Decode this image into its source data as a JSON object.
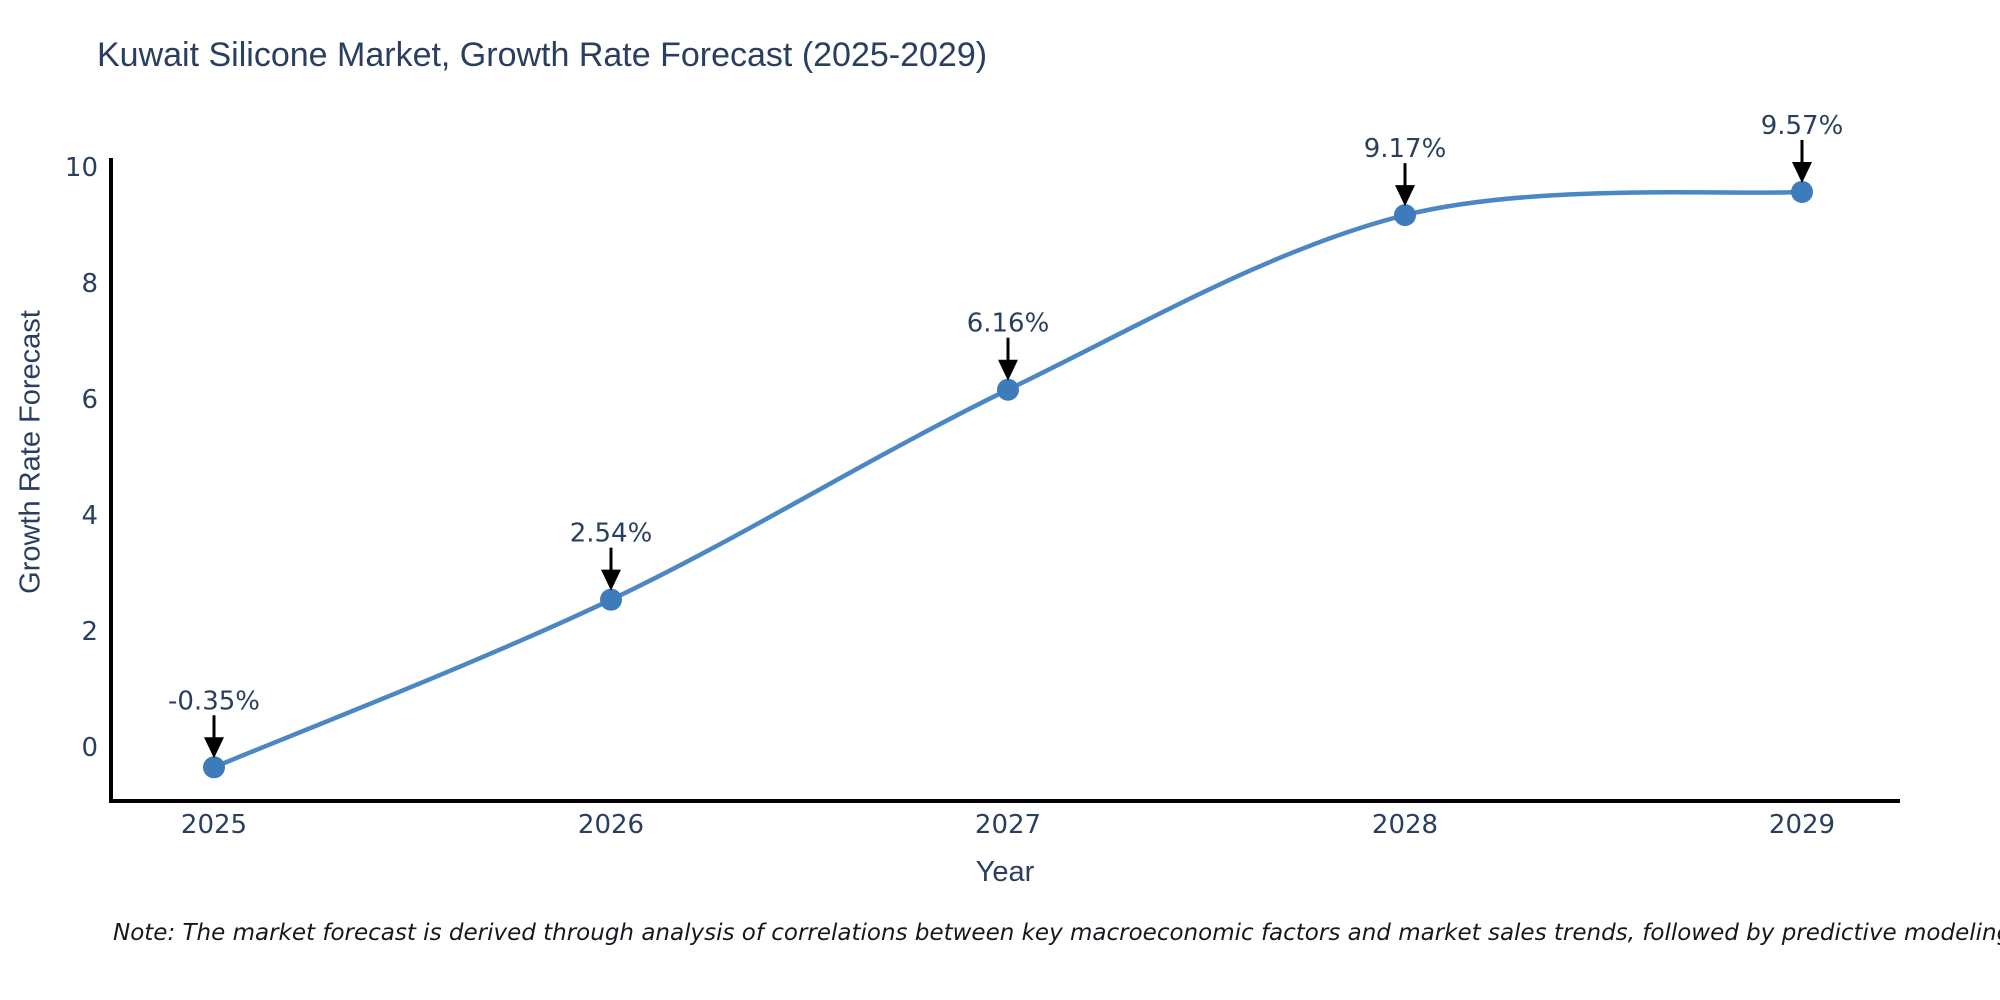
{
  "chart_data": {
    "type": "line",
    "title": "Kuwait Silicone Market, Growth Rate Forecast (2025-2029)",
    "xlabel": "Year",
    "ylabel": "Growth Rate Forecast",
    "x": [
      2025,
      2026,
      2027,
      2028,
      2029
    ],
    "series": [
      {
        "name": "Growth Rate Forecast",
        "values": [
          -0.35,
          2.54,
          6.16,
          9.17,
          9.57
        ],
        "point_labels": [
          "-0.35%",
          "2.54%",
          "6.16%",
          "9.17%",
          "9.57%"
        ]
      }
    ],
    "line_shape": "spline",
    "markers": true,
    "annotations_have_arrows": true,
    "yticks": [
      0,
      2,
      4,
      6,
      8,
      10
    ],
    "xticks": [
      "2025",
      "2026",
      "2027",
      "2028",
      "2029"
    ],
    "ylim": [
      -0.93,
      10.15
    ],
    "xlim": [
      2024.74,
      2029.25
    ],
    "grid": false,
    "legend": false,
    "colors": {
      "line": "#4a87c3",
      "marker": "#3d7bba",
      "axis": "#000000",
      "text": "#2a3f5f",
      "arrow": "#000000",
      "note": "#16181d",
      "background": "#ffffff"
    },
    "note": "Note: The market forecast is derived through analysis of correlations between key macroeconomic factors and market sales trends, followed by predictive modeling to project future sales"
  }
}
